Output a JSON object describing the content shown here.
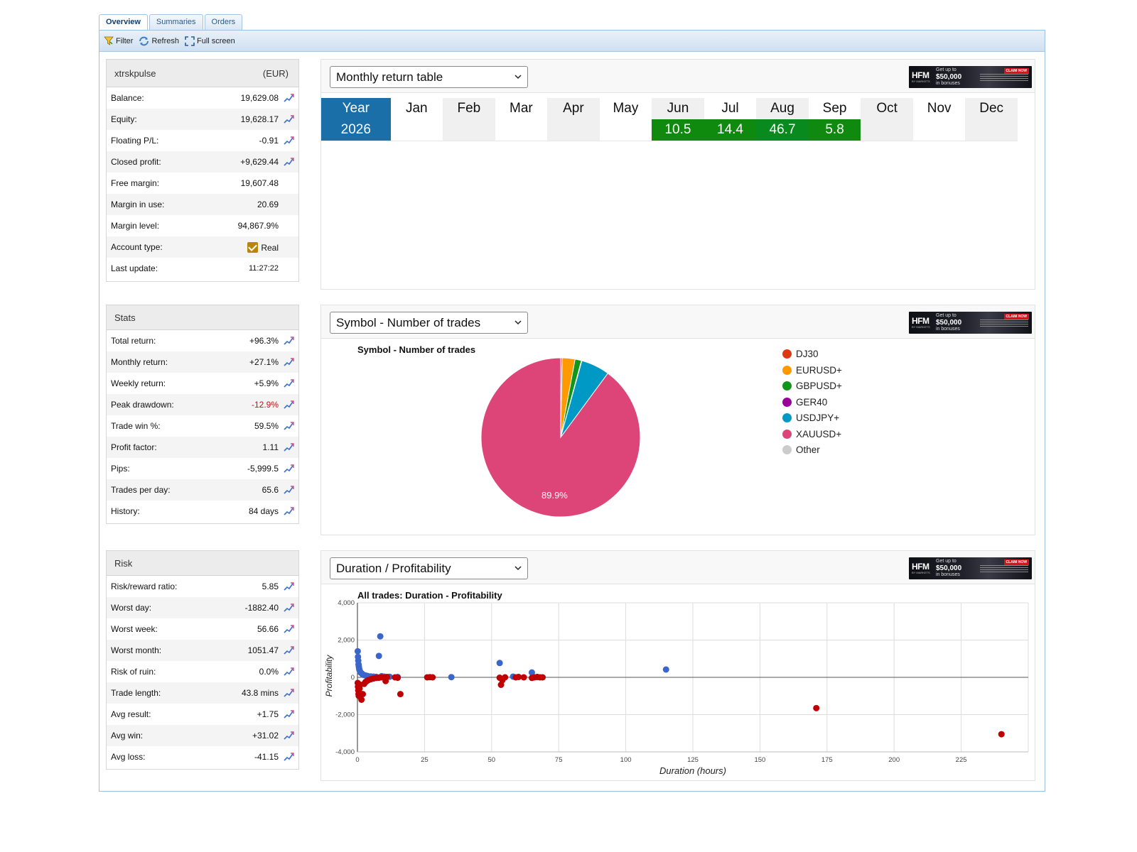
{
  "tabs": [
    {
      "label": "Overview",
      "active": true
    },
    {
      "label": "Summaries",
      "active": false
    },
    {
      "label": "Orders",
      "active": false
    }
  ],
  "toolbar": {
    "filter_label": "Filter",
    "refresh_label": "Refresh",
    "fullscreen_label": "Full screen"
  },
  "account": {
    "name": "xtrskpulse",
    "currency": "(EUR)",
    "rows": [
      {
        "label": "Balance:",
        "value": "19,629.08",
        "action": true
      },
      {
        "label": "Equity:",
        "value": "19,628.17",
        "action": true
      },
      {
        "label": "Floating P/L:",
        "value": "-0.91",
        "action": true
      },
      {
        "label": "Closed profit:",
        "value": "+9,629.44",
        "action": true
      },
      {
        "label": "Free margin:",
        "value": "19,607.48",
        "action": false
      },
      {
        "label": "Margin in use:",
        "value": "20.69",
        "action": false
      },
      {
        "label": "Margin level:",
        "value": "94,867.9%",
        "action": false
      },
      {
        "label": "Account type:",
        "value": "Real",
        "action": false
      },
      {
        "label": "Last update:",
        "value": "11:27:22",
        "action": false
      }
    ]
  },
  "stats": {
    "title": "Stats",
    "rows": [
      {
        "label": "Total return:",
        "value": "+96.3%"
      },
      {
        "label": "Monthly return:",
        "value": "+27.1%"
      },
      {
        "label": "Weekly return:",
        "value": "+5.9%"
      },
      {
        "label": "Peak drawdown:",
        "value": "-12.9%"
      },
      {
        "label": "Trade win %:",
        "value": "59.5%"
      },
      {
        "label": "Profit factor:",
        "value": "1.11"
      },
      {
        "label": "Pips:",
        "value": "-5,999.5"
      },
      {
        "label": "Trades per day:",
        "value": "65.6"
      },
      {
        "label": "History:",
        "value": "84 days"
      }
    ]
  },
  "risk": {
    "title": "Risk",
    "rows": [
      {
        "label": "Risk/reward ratio:",
        "value": "5.85"
      },
      {
        "label": "Worst day:",
        "value": "-1882.40"
      },
      {
        "label": "Worst week:",
        "value": "56.66"
      },
      {
        "label": "Worst month:",
        "value": "1051.47"
      },
      {
        "label": "Risk of ruin:",
        "value": "0.0%"
      },
      {
        "label": "Trade length:",
        "value": "43.8 mins"
      },
      {
        "label": "Avg result:",
        "value": "+1.75"
      },
      {
        "label": "Avg win:",
        "value": "+31.02"
      },
      {
        "label": "Avg loss:",
        "value": "-41.15"
      }
    ]
  },
  "ad": {
    "logo": "HFM",
    "logo_sub": "BY MARKETS",
    "line1": "Get up to",
    "line2": "$50,000",
    "line3": "in bonuses",
    "cta": "CLAIM NOW"
  },
  "monthly": {
    "select_label": "Monthly return table",
    "header": [
      "Year",
      "Jan",
      "Feb",
      "Mar",
      "Apr",
      "May",
      "Jun",
      "Jul",
      "Aug",
      "Sep",
      "Oct",
      "Nov",
      "Dec"
    ],
    "year": "2026",
    "values": [
      "",
      "",
      "",
      "",
      "",
      "10.5",
      "14.4",
      "46.7",
      "5.8",
      "",
      "",
      ""
    ]
  },
  "pie": {
    "select_label": "Symbol - Number of trades",
    "slice_label": "89.9%"
  },
  "scatter": {
    "select_label": "Duration / Profitability"
  },
  "colors": {
    "accent_blue": "#1a6fa8",
    "positive_green": "#0f8a0f",
    "negative_red": "#c0131b",
    "scatter_blue": "#3a66cc",
    "scatter_red": "#c00000"
  },
  "chart_data": [
    {
      "type": "pie",
      "title": "Symbol - Number of trades",
      "legend_position": "right",
      "slices": [
        {
          "name": "DJ30",
          "value": 0.3,
          "color": "#dc3912"
        },
        {
          "name": "EURUSD+",
          "value": 2.6,
          "color": "#ff9900"
        },
        {
          "name": "GBPUSD+",
          "value": 1.3,
          "color": "#109618"
        },
        {
          "name": "GER40",
          "value": 0.1,
          "color": "#990099"
        },
        {
          "name": "USDJPY+",
          "value": 5.8,
          "color": "#0099c6"
        },
        {
          "name": "XAUUSD+",
          "value": 89.9,
          "color": "#dd4477"
        },
        {
          "name": "Other",
          "value": 0.0,
          "color": "#cccccc"
        }
      ]
    },
    {
      "type": "scatter",
      "title": "All trades: Duration - Profitability",
      "xlabel": "Duration (hours)",
      "ylabel": "Profitability",
      "xlim": [
        0,
        250
      ],
      "ylim": [
        -4000,
        4000
      ],
      "xticks": [
        0,
        25,
        50,
        75,
        100,
        125,
        150,
        175,
        200,
        225
      ],
      "yticks": [
        -4000,
        -2000,
        0,
        2000,
        4000
      ],
      "ytick_labels": [
        "-4,000",
        "-2,000",
        "0",
        "2,000",
        "4,000"
      ],
      "grid": true,
      "series": [
        {
          "color": "#3a66cc",
          "points": [
            [
              0.1,
              1400
            ],
            [
              0.2,
              1100
            ],
            [
              0.3,
              900
            ],
            [
              0.4,
              700
            ],
            [
              0.5,
              600
            ],
            [
              0.6,
              500
            ],
            [
              0.7,
              420
            ],
            [
              0.8,
              380
            ],
            [
              1,
              300
            ],
            [
              1.2,
              260
            ],
            [
              1.5,
              220
            ],
            [
              1.8,
              180
            ],
            [
              2,
              150
            ],
            [
              2.5,
              120
            ],
            [
              3,
              100
            ],
            [
              3.5,
              80
            ],
            [
              4,
              60
            ],
            [
              5,
              50
            ],
            [
              6,
              40
            ],
            [
              7,
              30
            ],
            [
              8.5,
              2200
            ],
            [
              8,
              1150
            ],
            [
              9,
              60
            ],
            [
              10,
              40
            ],
            [
              12,
              30
            ],
            [
              15,
              20
            ],
            [
              35,
              10
            ],
            [
              53,
              770
            ],
            [
              58,
              40
            ],
            [
              60,
              20
            ],
            [
              65,
              260
            ],
            [
              67,
              20
            ],
            [
              115,
              420
            ]
          ]
        },
        {
          "color": "#c00000",
          "points": [
            [
              0.1,
              -300
            ],
            [
              0.2,
              -500
            ],
            [
              0.3,
              -700
            ],
            [
              0.4,
              -900
            ],
            [
              0.5,
              -1000
            ],
            [
              0.6,
              -800
            ],
            [
              0.8,
              -600
            ],
            [
              1,
              -400
            ],
            [
              1.5,
              -1200
            ],
            [
              2,
              -900
            ],
            [
              2.5,
              -350
            ],
            [
              3,
              -250
            ],
            [
              3.5,
              -200
            ],
            [
              4,
              -150
            ],
            [
              5,
              -100
            ],
            [
              6,
              -60
            ],
            [
              7,
              -30
            ],
            [
              8,
              -20
            ],
            [
              9,
              0
            ],
            [
              10,
              -10
            ],
            [
              10.5,
              -200
            ],
            [
              11,
              20
            ],
            [
              14,
              0
            ],
            [
              15,
              -20
            ],
            [
              16,
              -900
            ],
            [
              26,
              0
            ],
            [
              27,
              10
            ],
            [
              28,
              0
            ],
            [
              53,
              -20
            ],
            [
              53.5,
              -400
            ],
            [
              54,
              -150
            ],
            [
              55,
              0
            ],
            [
              59,
              0
            ],
            [
              60,
              20
            ],
            [
              62,
              0
            ],
            [
              65,
              -30
            ],
            [
              66,
              0
            ],
            [
              67,
              20
            ],
            [
              68,
              0
            ],
            [
              69,
              0
            ],
            [
              171,
              -1650
            ],
            [
              240,
              -3050
            ]
          ]
        }
      ]
    }
  ]
}
